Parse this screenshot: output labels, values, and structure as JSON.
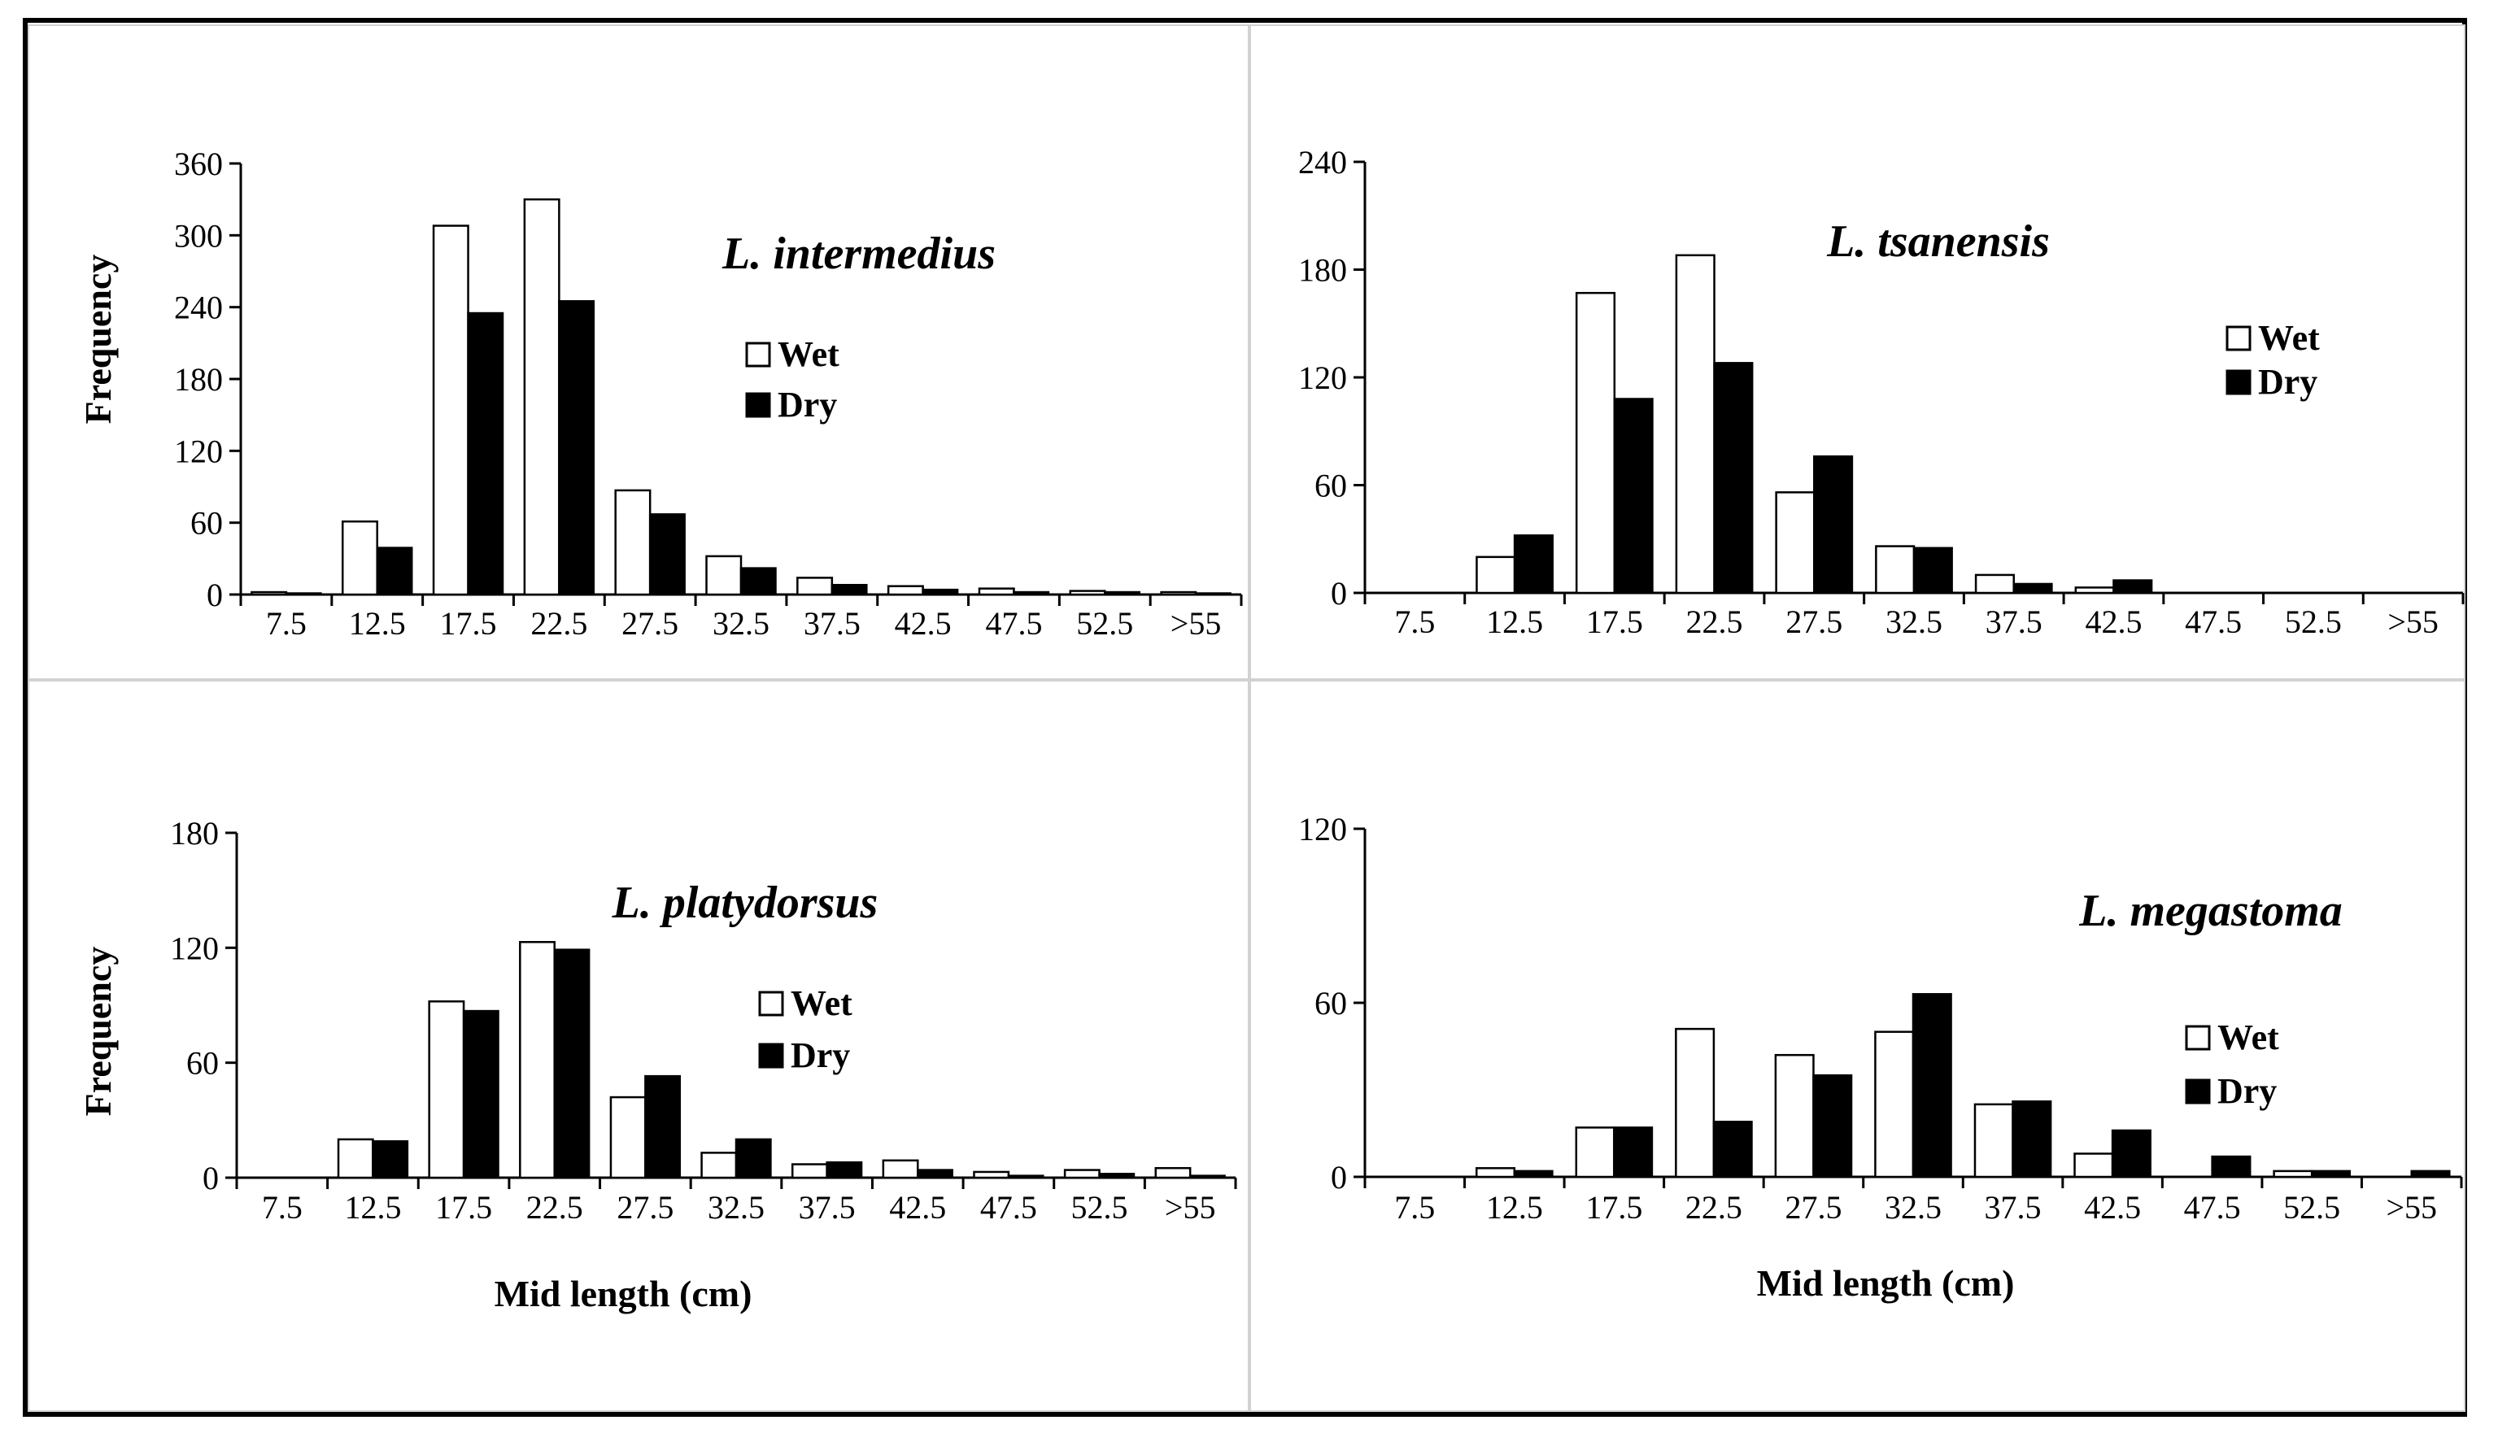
{
  "chart_data": [
    {
      "type": "bar",
      "title": "L. intermedius",
      "xlabel": "",
      "ylabel": "Frequency",
      "ylim": [
        0,
        360
      ],
      "yticks": [
        0,
        60,
        120,
        180,
        240,
        300,
        360
      ],
      "categories": [
        "7.5",
        "12.5",
        "17.5",
        "22.5",
        "27.5",
        "32.5",
        "37.5",
        "42.5",
        "47.5",
        "52.5",
        ">55"
      ],
      "series": [
        {
          "name": "Wet",
          "color": "#ffffff",
          "values": [
            2,
            61,
            308,
            330,
            87,
            32,
            14,
            7,
            5,
            3,
            2
          ]
        },
        {
          "name": "Dry",
          "color": "#000000",
          "values": [
            1,
            39,
            235,
            245,
            67,
            22,
            8,
            4,
            2,
            2,
            1
          ]
        }
      ],
      "legend_position": "center"
    },
    {
      "type": "bar",
      "title": "L. tsanensis",
      "xlabel": "",
      "ylabel": "",
      "ylim": [
        0,
        240
      ],
      "yticks": [
        0,
        60,
        120,
        180,
        240
      ],
      "categories": [
        "7.5",
        "12.5",
        "17.5",
        "22.5",
        "27.5",
        "32.5",
        "37.5",
        "42.5",
        "47.5",
        "52.5",
        ">55"
      ],
      "series": [
        {
          "name": "Wet",
          "color": "#ffffff",
          "values": [
            0,
            20,
            167,
            188,
            56,
            26,
            10,
            3,
            0,
            0,
            0
          ]
        },
        {
          "name": "Dry",
          "color": "#000000",
          "values": [
            0,
            32,
            108,
            128,
            76,
            25,
            5,
            7,
            0,
            0,
            0
          ]
        }
      ],
      "legend_position": "center-right"
    },
    {
      "type": "bar",
      "title": "L. platydorsus",
      "xlabel": "Mid length (cm)",
      "ylabel": "Frequency",
      "ylim": [
        0,
        180
      ],
      "yticks": [
        0,
        60,
        120,
        180
      ],
      "categories": [
        "7.5",
        "12.5",
        "17.5",
        "22.5",
        "27.5",
        "32.5",
        "37.5",
        "42.5",
        "47.5",
        "52.5",
        ">55"
      ],
      "series": [
        {
          "name": "Wet",
          "color": "#ffffff",
          "values": [
            0,
            20,
            92,
            123,
            42,
            13,
            7,
            9,
            3,
            4,
            5
          ]
        },
        {
          "name": "Dry",
          "color": "#000000",
          "values": [
            0,
            19,
            87,
            119,
            53,
            20,
            8,
            4,
            1,
            2,
            1
          ]
        }
      ],
      "legend_position": "center-right"
    },
    {
      "type": "bar",
      "title": "L. megastoma",
      "xlabel": "Mid length (cm)",
      "ylabel": "",
      "ylim": [
        0,
        120
      ],
      "yticks": [
        0,
        60,
        120
      ],
      "categories": [
        "7.5",
        "12.5",
        "17.5",
        "22.5",
        "27.5",
        "32.5",
        "37.5",
        "42.5",
        "47.5",
        "52.5",
        ">55"
      ],
      "series": [
        {
          "name": "Wet",
          "color": "#ffffff",
          "values": [
            0,
            3,
            17,
            51,
            42,
            50,
            25,
            8,
            0,
            2,
            0
          ]
        },
        {
          "name": "Dry",
          "color": "#000000",
          "values": [
            0,
            2,
            17,
            19,
            35,
            63,
            26,
            16,
            7,
            2,
            2
          ]
        }
      ],
      "legend_position": "right"
    }
  ]
}
